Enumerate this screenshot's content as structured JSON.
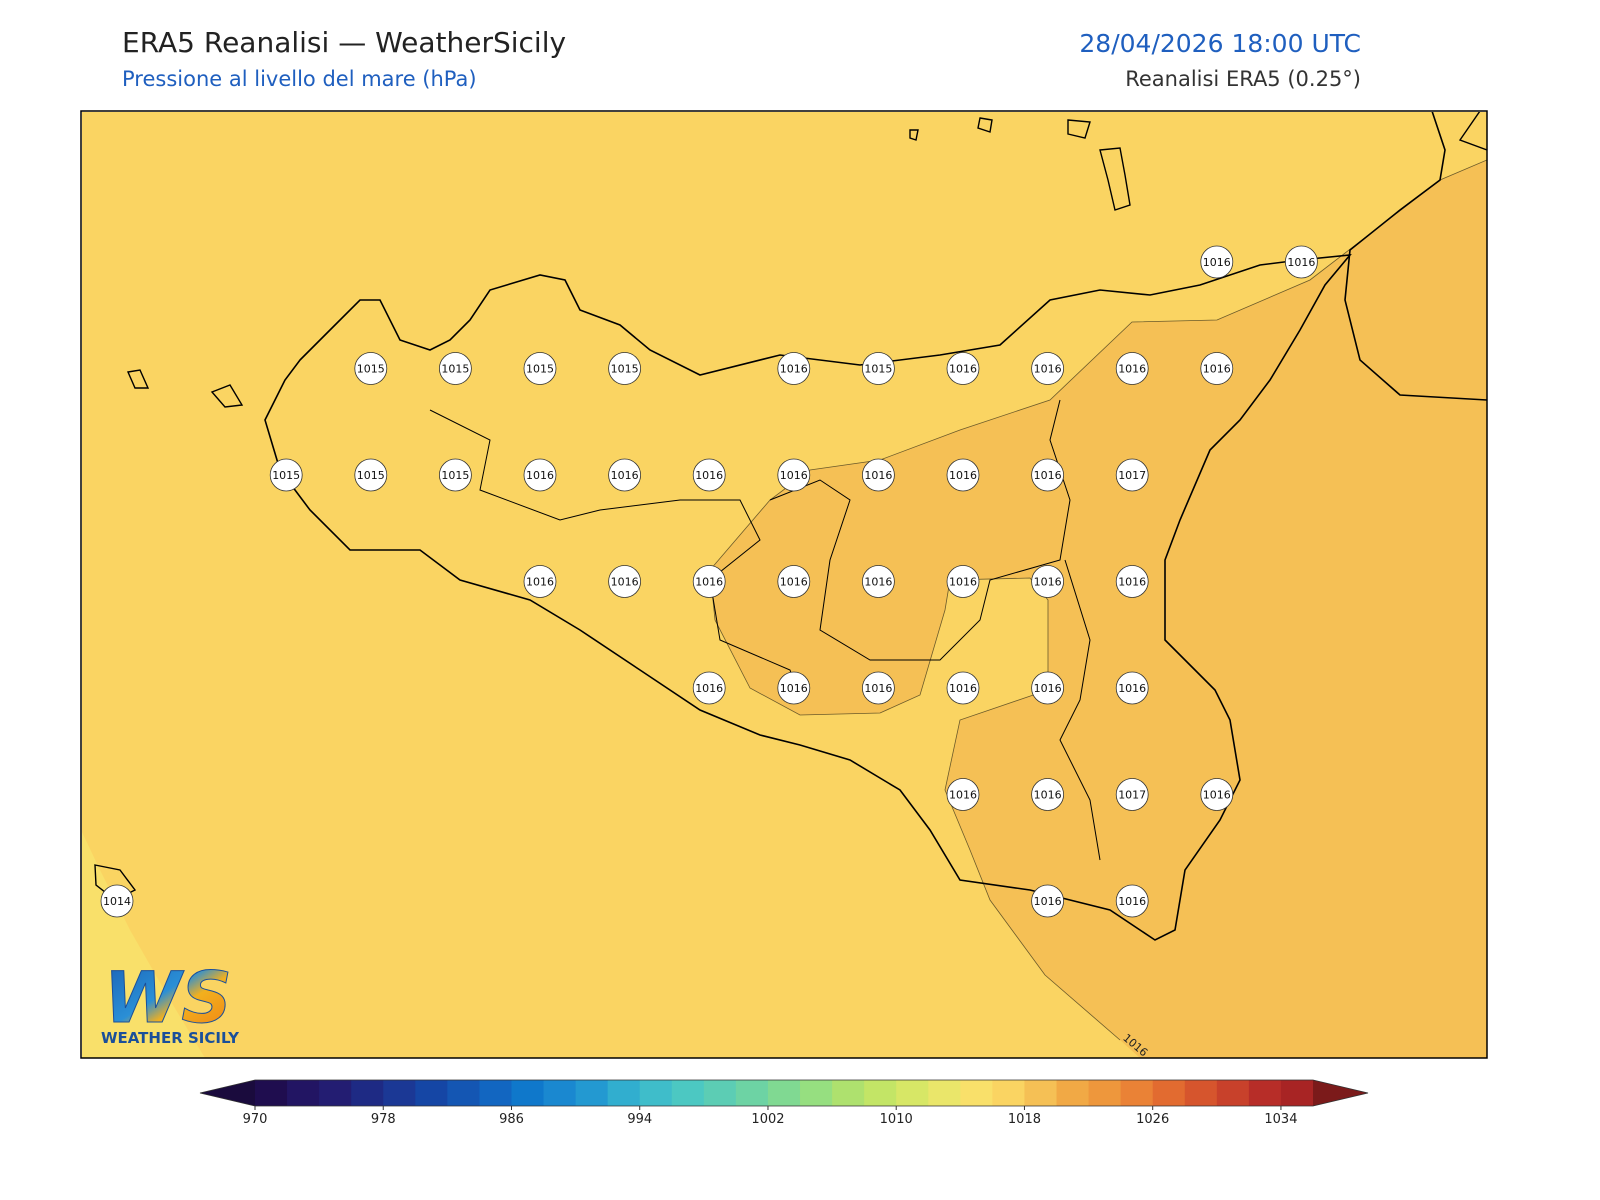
{
  "header": {
    "title": "ERA5 Reanalisi — WeatherSicily",
    "subtitle": "Pressione al livello del mare (hPa)",
    "datetime": "28/04/2026 18:00 UTC",
    "source": "Reanalisi ERA5 (0.25°)"
  },
  "map": {
    "grid": [
      [
        null,
        null,
        null,
        null,
        null,
        null,
        null,
        null,
        null,
        null,
        null,
        null,
        null,
        "1016",
        "1016"
      ],
      [
        null,
        null,
        null,
        "1015",
        "1015",
        "1015",
        "1015",
        null,
        "1016",
        "1015",
        "1016",
        "1016",
        "1016",
        "1016",
        null
      ],
      [
        null,
        null,
        "1015",
        "1015",
        "1015",
        "1016",
        "1016",
        "1016",
        "1016",
        "1016",
        "1016",
        "1016",
        "1017",
        null,
        null
      ],
      [
        null,
        null,
        null,
        null,
        null,
        "1016",
        "1016",
        "1016",
        "1016",
        "1016",
        "1016",
        "1016",
        "1016",
        null,
        null
      ],
      [
        null,
        null,
        null,
        null,
        null,
        null,
        null,
        "1016",
        "1016",
        "1016",
        "1016",
        "1016",
        "1016",
        null,
        null
      ],
      [
        null,
        null,
        null,
        null,
        null,
        null,
        null,
        null,
        null,
        null,
        "1016",
        "1016",
        "1017",
        "1016",
        null
      ],
      [
        "1014",
        null,
        null,
        null,
        null,
        null,
        null,
        null,
        null,
        null,
        null,
        "1016",
        "1016",
        null,
        null
      ]
    ],
    "contour_label": "1016"
  },
  "logo": {
    "mark": "WS",
    "text": "WEATHER SICILY"
  },
  "colorbar": {
    "lim": [
      970,
      1036
    ],
    "ticks": [
      970,
      978,
      986,
      994,
      1002,
      1010,
      1018,
      1026,
      1034
    ],
    "colors": [
      "#1f0d4f",
      "#221563",
      "#231d72",
      "#1e2a84",
      "#1b3895",
      "#1546a5",
      "#1456b3",
      "#1266c1",
      "#0f78cb",
      "#1a88d0",
      "#2399d1",
      "#31aecf",
      "#3fbdca",
      "#4cc8c2",
      "#5ccdb4",
      "#6dd3a4",
      "#80d992",
      "#96df80",
      "#aee16e",
      "#c3e566",
      "#d7e766",
      "#eae66a",
      "#f9e06a",
      "#fad462",
      "#f5c055",
      "#f1a945",
      "#ee973c",
      "#ea8236",
      "#e26b30",
      "#d6552d",
      "#c8412b",
      "#b72d28",
      "#a82424"
    ],
    "under_color": "#1a0b3d",
    "over_color": "#7b1a1a"
  }
}
